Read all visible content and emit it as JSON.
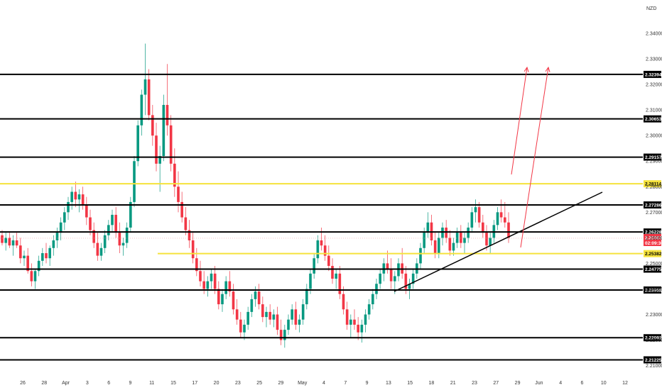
{
  "chart_data": {
    "type": "candlestick",
    "currency": "NZD",
    "y_ticks": [
      "2.34000",
      "2.33000",
      "2.32000",
      "2.31000",
      "2.30000",
      "2.29000",
      "2.28000",
      "2.27000",
      "2.26000",
      "2.25000",
      "2.24000",
      "2.23000",
      "2.22000",
      "2.21000"
    ],
    "y_range": [
      2.206,
      2.3475
    ],
    "x_ticks": [
      "26",
      "28",
      "Apr",
      "3",
      "6",
      "9",
      "11",
      "15",
      "17",
      "20",
      "23",
      "25",
      "29",
      "May",
      "4",
      "7",
      "9",
      "13",
      "15",
      "18",
      "21",
      "23",
      "27",
      "29",
      "Jun",
      "4",
      "6",
      "10",
      "12"
    ],
    "black_levels": [
      "2.32394",
      "2.30653",
      "2.29157",
      "2.27286",
      "2.26228",
      "2.24775",
      "2.23958",
      "2.22091",
      "2.21225"
    ],
    "yellow_levels": [
      "2.28114",
      "2.25382"
    ],
    "current_price": "2.25983",
    "countdown": "02:09:30",
    "up_color": "#089981",
    "down_color": "#f23645",
    "level_color": "#000000",
    "yellow_color": "#f5e23c",
    "arrow_color": "#f23645",
    "trendline_color": "#000000",
    "candles": [
      [
        2.261,
        2.263,
        2.257,
        2.258
      ],
      [
        2.258,
        2.262,
        2.255,
        2.26
      ],
      [
        2.26,
        2.262,
        2.256,
        2.257
      ],
      [
        2.257,
        2.261,
        2.253,
        2.259
      ],
      [
        2.259,
        2.262,
        2.256,
        2.257
      ],
      [
        2.257,
        2.26,
        2.25,
        2.252
      ],
      [
        2.252,
        2.255,
        2.249,
        2.253
      ],
      [
        2.253,
        2.256,
        2.246,
        2.247
      ],
      [
        2.247,
        2.25,
        2.241,
        2.243
      ],
      [
        2.243,
        2.248,
        2.24,
        2.247
      ],
      [
        2.247,
        2.253,
        2.245,
        2.251
      ],
      [
        2.251,
        2.256,
        2.249,
        2.254
      ],
      [
        2.254,
        2.258,
        2.25,
        2.252
      ],
      [
        2.252,
        2.257,
        2.249,
        2.256
      ],
      [
        2.256,
        2.261,
        2.253,
        2.259
      ],
      [
        2.259,
        2.264,
        2.256,
        2.262
      ],
      [
        2.262,
        2.268,
        2.259,
        2.266
      ],
      [
        2.266,
        2.272,
        2.263,
        2.27
      ],
      [
        2.27,
        2.276,
        2.267,
        2.274
      ],
      [
        2.274,
        2.28,
        2.271,
        2.278
      ],
      [
        2.278,
        2.282,
        2.272,
        2.275
      ],
      [
        2.275,
        2.279,
        2.27,
        2.277
      ],
      [
        2.277,
        2.28,
        2.271,
        2.273
      ],
      [
        2.273,
        2.276,
        2.265,
        2.268
      ],
      [
        2.268,
        2.271,
        2.261,
        2.263
      ],
      [
        2.263,
        2.266,
        2.256,
        2.258
      ],
      [
        2.258,
        2.262,
        2.251,
        2.253
      ],
      [
        2.253,
        2.258,
        2.251,
        2.256
      ],
      [
        2.256,
        2.263,
        2.254,
        2.261
      ],
      [
        2.261,
        2.267,
        2.259,
        2.265
      ],
      [
        2.265,
        2.271,
        2.262,
        2.269
      ],
      [
        2.269,
        2.272,
        2.26,
        2.262
      ],
      [
        2.262,
        2.266,
        2.254,
        2.257
      ],
      [
        2.257,
        2.26,
        2.253,
        2.258
      ],
      [
        2.258,
        2.266,
        2.256,
        2.264
      ],
      [
        2.264,
        2.276,
        2.262,
        2.274
      ],
      [
        2.274,
        2.292,
        2.272,
        2.29
      ],
      [
        2.29,
        2.306,
        2.288,
        2.304
      ],
      [
        2.304,
        2.318,
        2.3,
        2.316
      ],
      [
        2.316,
        2.336,
        2.308,
        2.322
      ],
      [
        2.322,
        2.326,
        2.306,
        2.308
      ],
      [
        2.308,
        2.312,
        2.296,
        2.3
      ],
      [
        2.3,
        2.305,
        2.286,
        2.289
      ],
      [
        2.289,
        2.296,
        2.278,
        2.292
      ],
      [
        2.292,
        2.316,
        2.29,
        2.312
      ],
      [
        2.312,
        2.328,
        2.3,
        2.304
      ],
      [
        2.304,
        2.308,
        2.286,
        2.289
      ],
      [
        2.289,
        2.295,
        2.276,
        2.28
      ],
      [
        2.28,
        2.286,
        2.27,
        2.274
      ],
      [
        2.274,
        2.278,
        2.266,
        2.268
      ],
      [
        2.268,
        2.272,
        2.261,
        2.263
      ],
      [
        2.263,
        2.267,
        2.256,
        2.259
      ],
      [
        2.259,
        2.262,
        2.25,
        2.252
      ],
      [
        2.252,
        2.256,
        2.245,
        2.247
      ],
      [
        2.247,
        2.251,
        2.241,
        2.243
      ],
      [
        2.243,
        2.247,
        2.238,
        2.24
      ],
      [
        2.24,
        2.245,
        2.237,
        2.243
      ],
      [
        2.243,
        2.248,
        2.24,
        2.246
      ],
      [
        2.246,
        2.249,
        2.238,
        2.24
      ],
      [
        2.24,
        2.243,
        2.232,
        2.234
      ],
      [
        2.234,
        2.24,
        2.231,
        2.238
      ],
      [
        2.238,
        2.245,
        2.236,
        2.243
      ],
      [
        2.243,
        2.247,
        2.237,
        2.239
      ],
      [
        2.239,
        2.242,
        2.23,
        2.232
      ],
      [
        2.232,
        2.236,
        2.226,
        2.228
      ],
      [
        2.228,
        2.231,
        2.221,
        2.223
      ],
      [
        2.223,
        2.228,
        2.22,
        2.226
      ],
      [
        2.226,
        2.233,
        2.224,
        2.231
      ],
      [
        2.231,
        2.238,
        2.229,
        2.236
      ],
      [
        2.236,
        2.241,
        2.233,
        2.239
      ],
      [
        2.239,
        2.242,
        2.232,
        2.234
      ],
      [
        2.234,
        2.237,
        2.227,
        2.229
      ],
      [
        2.229,
        2.233,
        2.225,
        2.231
      ],
      [
        2.231,
        2.234,
        2.226,
        2.228
      ],
      [
        2.228,
        2.232,
        2.225,
        2.23
      ],
      [
        2.23,
        2.233,
        2.222,
        2.224
      ],
      [
        2.224,
        2.228,
        2.218,
        2.22
      ],
      [
        2.22,
        2.226,
        2.217,
        2.224
      ],
      [
        2.224,
        2.23,
        2.222,
        2.228
      ],
      [
        2.228,
        2.234,
        2.226,
        2.232
      ],
      [
        2.232,
        2.235,
        2.224,
        2.226
      ],
      [
        2.226,
        2.23,
        2.223,
        2.228
      ],
      [
        2.228,
        2.236,
        2.226,
        2.234
      ],
      [
        2.234,
        2.242,
        2.232,
        2.24
      ],
      [
        2.24,
        2.248,
        2.238,
        2.246
      ],
      [
        2.246,
        2.254,
        2.244,
        2.252
      ],
      [
        2.252,
        2.261,
        2.25,
        2.259
      ],
      [
        2.259,
        2.264,
        2.255,
        2.257
      ],
      [
        2.257,
        2.261,
        2.251,
        2.253
      ],
      [
        2.253,
        2.257,
        2.247,
        2.249
      ],
      [
        2.249,
        2.252,
        2.242,
        2.244
      ],
      [
        2.244,
        2.248,
        2.24,
        2.246
      ],
      [
        2.246,
        2.249,
        2.236,
        2.238
      ],
      [
        2.238,
        2.241,
        2.23,
        2.232
      ],
      [
        2.232,
        2.235,
        2.224,
        2.226
      ],
      [
        2.226,
        2.23,
        2.221,
        2.228
      ],
      [
        2.228,
        2.232,
        2.224,
        2.226
      ],
      [
        2.226,
        2.229,
        2.22,
        2.223
      ],
      [
        2.223,
        2.228,
        2.219,
        2.226
      ],
      [
        2.226,
        2.232,
        2.223,
        2.23
      ],
      [
        2.23,
        2.236,
        2.228,
        2.234
      ],
      [
        2.234,
        2.24,
        2.232,
        2.238
      ],
      [
        2.238,
        2.244,
        2.236,
        2.242
      ],
      [
        2.242,
        2.248,
        2.24,
        2.246
      ],
      [
        2.246,
        2.252,
        2.243,
        2.25
      ],
      [
        2.25,
        2.255,
        2.246,
        2.248
      ],
      [
        2.248,
        2.252,
        2.24,
        2.243
      ],
      [
        2.243,
        2.247,
        2.238,
        2.245
      ],
      [
        2.245,
        2.252,
        2.243,
        2.25
      ],
      [
        2.25,
        2.256,
        2.244,
        2.246
      ],
      [
        2.246,
        2.249,
        2.238,
        2.24
      ],
      [
        2.24,
        2.244,
        2.236,
        2.242
      ],
      [
        2.242,
        2.248,
        2.24,
        2.246
      ],
      [
        2.246,
        2.252,
        2.244,
        2.25
      ],
      [
        2.25,
        2.258,
        2.248,
        2.256
      ],
      [
        2.256,
        2.264,
        2.254,
        2.262
      ],
      [
        2.262,
        2.27,
        2.26,
        2.266
      ],
      [
        2.266,
        2.269,
        2.257,
        2.259
      ],
      [
        2.259,
        2.262,
        2.252,
        2.254
      ],
      [
        2.254,
        2.262,
        2.252,
        2.26
      ],
      [
        2.26,
        2.266,
        2.257,
        2.264
      ],
      [
        2.264,
        2.267,
        2.258,
        2.26
      ],
      [
        2.26,
        2.263,
        2.253,
        2.255
      ],
      [
        2.255,
        2.26,
        2.253,
        2.258
      ],
      [
        2.258,
        2.264,
        2.256,
        2.262
      ],
      [
        2.262,
        2.265,
        2.256,
        2.258
      ],
      [
        2.258,
        2.262,
        2.254,
        2.26
      ],
      [
        2.26,
        2.266,
        2.258,
        2.264
      ],
      [
        2.264,
        2.272,
        2.262,
        2.27
      ],
      [
        2.27,
        2.275,
        2.266,
        2.272
      ],
      [
        2.272,
        2.274,
        2.264,
        2.266
      ],
      [
        2.266,
        2.269,
        2.26,
        2.262
      ],
      [
        2.262,
        2.265,
        2.255,
        2.257
      ],
      [
        2.257,
        2.262,
        2.254,
        2.26
      ],
      [
        2.26,
        2.267,
        2.258,
        2.265
      ],
      [
        2.265,
        2.272,
        2.263,
        2.27
      ],
      [
        2.27,
        2.275,
        2.266,
        2.268
      ],
      [
        2.268,
        2.274,
        2.264,
        2.266
      ],
      [
        2.266,
        2.27,
        2.258,
        2.26
      ]
    ]
  }
}
